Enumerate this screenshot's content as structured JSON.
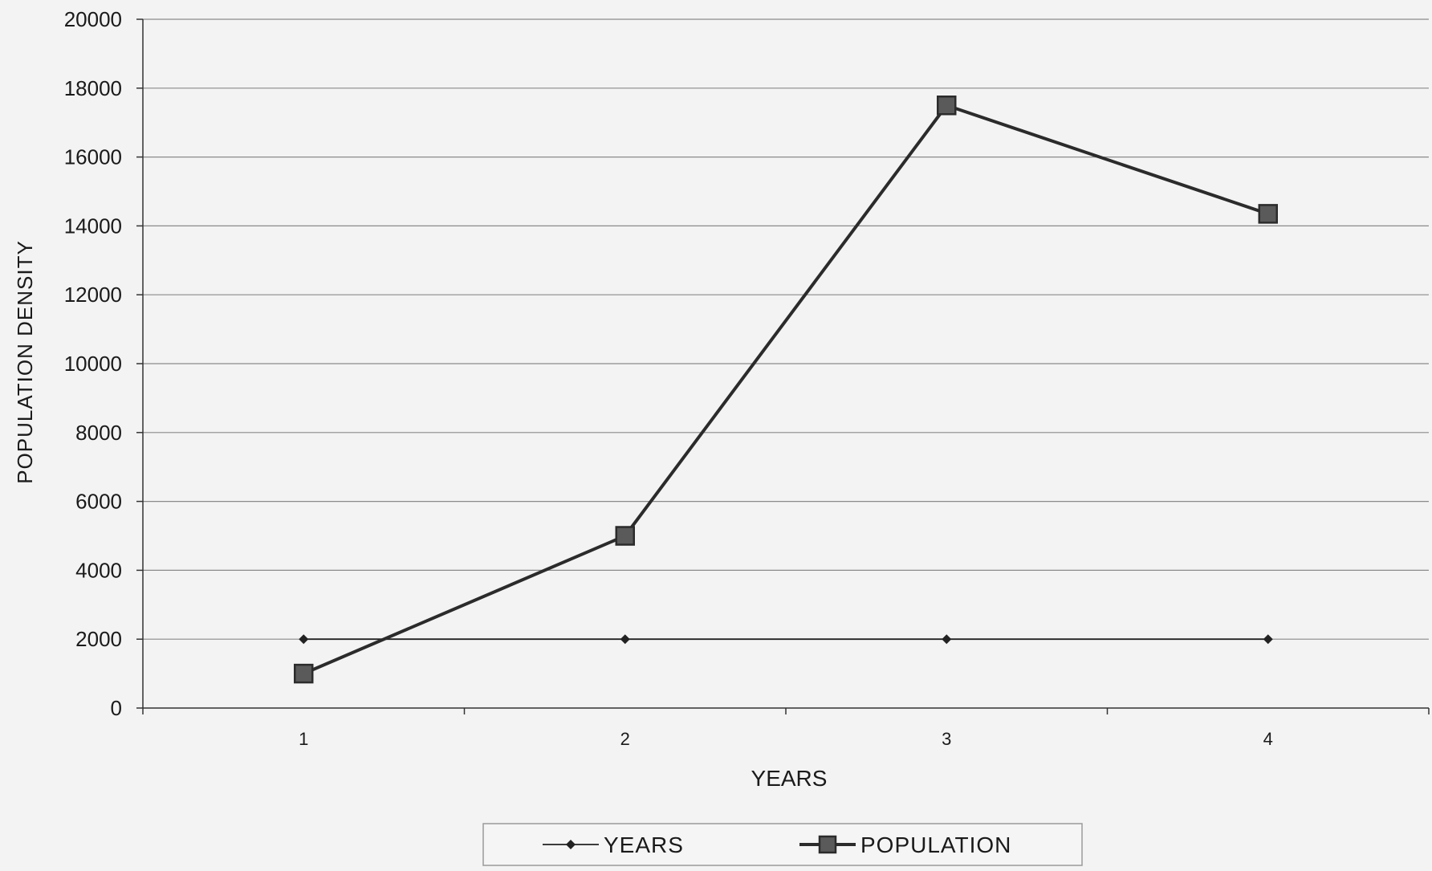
{
  "chart_data": {
    "type": "line",
    "title": "",
    "xlabel": "YEARS",
    "ylabel": "POPULATION DENSITY",
    "categories": [
      "1",
      "2",
      "3",
      "4"
    ],
    "ylim": [
      0,
      20000
    ],
    "yticks": [
      0,
      2000,
      4000,
      6000,
      8000,
      10000,
      12000,
      14000,
      16000,
      18000,
      20000
    ],
    "grid": true,
    "legend_position": "bottom",
    "series": [
      {
        "name": "YEARS",
        "values": [
          2000,
          2000,
          2000,
          2000
        ],
        "marker": "diamond",
        "color": "#222222"
      },
      {
        "name": "POPULATION",
        "values": [
          1000,
          5000,
          17500,
          14350
        ],
        "marker": "square",
        "color": "#2b2b2b"
      }
    ]
  }
}
